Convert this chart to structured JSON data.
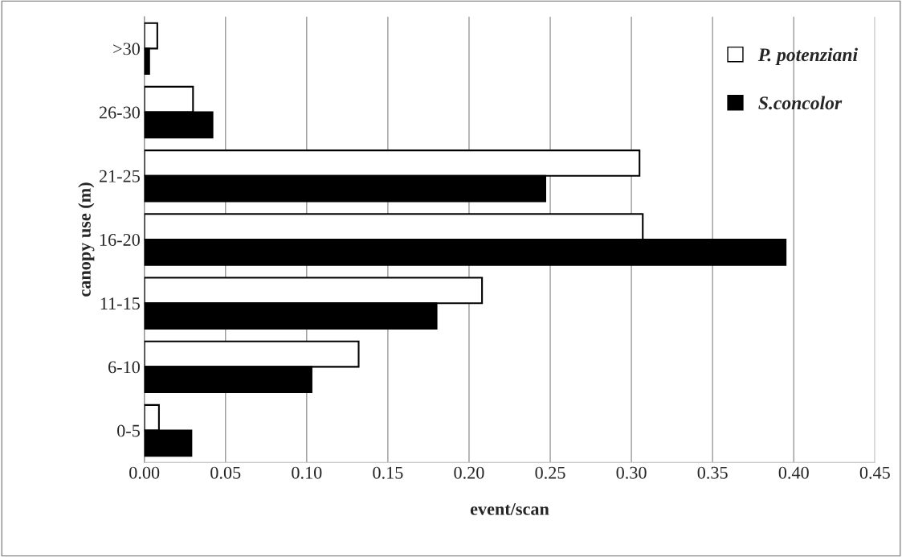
{
  "chart_data": {
    "type": "bar",
    "orientation": "horizontal",
    "xlabel": "event/scan",
    "ylabel": "canopy use (m)",
    "categories": [
      ">30",
      "26-30",
      "21-25",
      "16-20",
      "11-15",
      "6-10",
      "0-5"
    ],
    "series": [
      {
        "name": "P. potenziani",
        "color": "#ffffff",
        "values": [
          0.008,
          0.03,
          0.305,
          0.307,
          0.208,
          0.132,
          0.009
        ]
      },
      {
        "name": "S.concolor",
        "color": "#000000",
        "values": [
          0.003,
          0.042,
          0.247,
          0.395,
          0.18,
          0.103,
          0.029
        ]
      }
    ],
    "xlim": [
      0,
      0.45
    ],
    "xticks": [
      {
        "value": 0,
        "label": "0.00"
      },
      {
        "value": 0.05,
        "label": "0.05"
      },
      {
        "value": 0.1,
        "label": "0.10"
      },
      {
        "value": 0.15,
        "label": "0.15"
      },
      {
        "value": 0.2,
        "label": "0.20"
      },
      {
        "value": 0.25,
        "label": "0.25"
      },
      {
        "value": 0.3,
        "label": "0.30"
      },
      {
        "value": 0.35,
        "label": "0.35"
      },
      {
        "value": 0.4,
        "label": "0.40"
      },
      {
        "value": 0.45,
        "label": "0.45"
      }
    ],
    "grid": "x",
    "legend": "top right"
  }
}
